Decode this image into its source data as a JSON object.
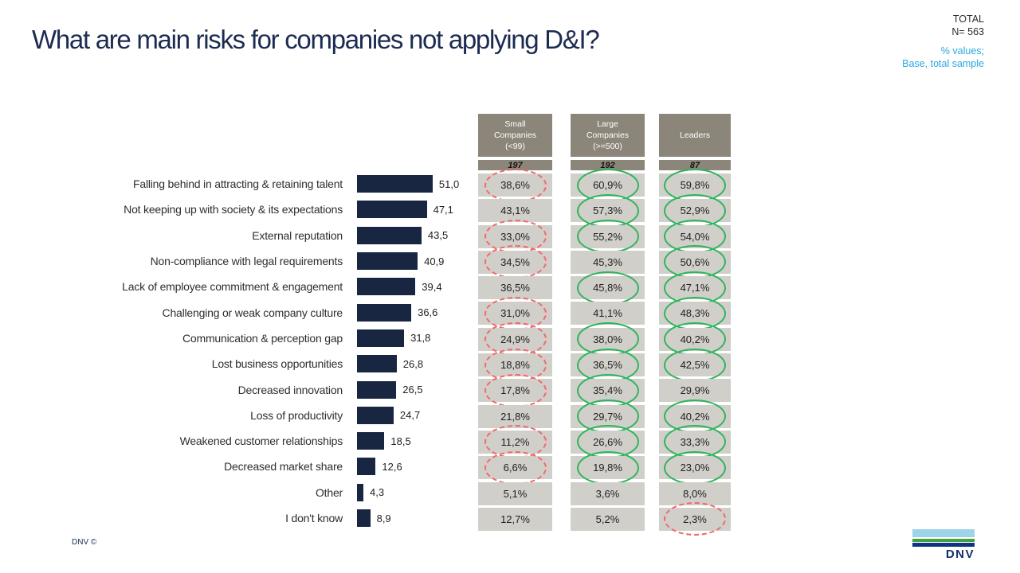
{
  "header": {
    "title": "What are main risks for companies not applying D&I?",
    "total_label": "TOTAL",
    "total_n": "N= 563",
    "note_line1": "% values;",
    "note_line2": "Base, total sample"
  },
  "footer": {
    "copyright": "DNV ©",
    "logo_text": "DNV",
    "logo_colors": {
      "light_blue": "#9ed3ea",
      "green": "#3fa43c",
      "dark_blue": "#0e3380"
    }
  },
  "colors": {
    "bar_navy": "#182642",
    "title_navy": "#1c2b51",
    "cyan_note": "#29a9e1",
    "header_taupe": "#8c8579",
    "cell_gray": "#d1cfca",
    "circle_red": "#f26969",
    "circle_green": "#2fb45c"
  },
  "chart_data": {
    "type": "bar",
    "orientation": "horizontal",
    "title": "What are main risks for companies not applying D&I?",
    "xlim": [
      0,
      55
    ],
    "grid": false,
    "categories": [
      "Falling behind in attracting & retaining talent",
      "Not keeping up with society & its expectations",
      "External reputation",
      "Non-compliance with legal requirements",
      "Lack of employee commitment & engagement",
      "Challenging or weak company culture",
      "Communication & perception gap",
      "Lost business opportunities",
      "Decreased innovation",
      "Loss of productivity",
      "Weakened customer relationships",
      "Decreased market share",
      "Other",
      "I don't know"
    ],
    "bar_labels": [
      "51,0",
      "47,1",
      "43,5",
      "40,9",
      "39,4",
      "36,6",
      "31,8",
      "26,8",
      "26,5",
      "24,7",
      "18,5",
      "12,6",
      "4,3",
      "8,9"
    ],
    "series": [
      {
        "name": "Total",
        "n": 563,
        "values": [
          51.0,
          47.1,
          43.5,
          40.9,
          39.4,
          36.6,
          31.8,
          26.8,
          26.5,
          24.7,
          18.5,
          12.6,
          4.3,
          8.9
        ]
      },
      {
        "name": "Small Companies (<99)",
        "n": 197,
        "values": [
          38.6,
          43.1,
          33.0,
          34.5,
          36.5,
          31.0,
          24.9,
          18.8,
          17.8,
          21.8,
          11.2,
          6.6,
          5.1,
          12.7
        ]
      },
      {
        "name": "Large Companies (>=500)",
        "n": 192,
        "values": [
          60.9,
          57.3,
          55.2,
          45.3,
          45.8,
          41.1,
          38.0,
          36.5,
          35.4,
          29.7,
          26.6,
          19.8,
          3.6,
          5.2
        ]
      },
      {
        "name": "Leaders",
        "n": 87,
        "values": [
          59.8,
          52.9,
          54.0,
          50.6,
          47.1,
          48.3,
          40.2,
          42.5,
          29.9,
          40.2,
          33.3,
          23.0,
          8.0,
          2.3
        ]
      }
    ]
  },
  "columns": [
    {
      "header_lines": [
        "Small",
        "Companies",
        "(<99)"
      ],
      "n": "197",
      "cells": [
        {
          "v": "38,6%",
          "mark": "red-dashed"
        },
        {
          "v": "43,1%",
          "mark": null
        },
        {
          "v": "33,0%",
          "mark": "red-dashed"
        },
        {
          "v": "34,5%",
          "mark": "red-dashed"
        },
        {
          "v": "36,5%",
          "mark": null
        },
        {
          "v": "31,0%",
          "mark": "red-dashed"
        },
        {
          "v": "24,9%",
          "mark": "red-dashed"
        },
        {
          "v": "18,8%",
          "mark": "red-dashed"
        },
        {
          "v": "17,8%",
          "mark": "red-dashed"
        },
        {
          "v": "21,8%",
          "mark": null
        },
        {
          "v": "11,2%",
          "mark": "red-dashed"
        },
        {
          "v": "6,6%",
          "mark": "red-dashed"
        },
        {
          "v": "5,1%",
          "mark": null
        },
        {
          "v": "12,7%",
          "mark": null
        }
      ]
    },
    {
      "header_lines": [
        "Large",
        "Companies",
        "(>=500)"
      ],
      "n": "192",
      "cells": [
        {
          "v": "60,9%",
          "mark": "green-solid"
        },
        {
          "v": "57,3%",
          "mark": "green-solid"
        },
        {
          "v": "55,2%",
          "mark": "green-solid"
        },
        {
          "v": "45,3%",
          "mark": null
        },
        {
          "v": "45,8%",
          "mark": "green-solid"
        },
        {
          "v": "41,1%",
          "mark": null
        },
        {
          "v": "38,0%",
          "mark": "green-solid"
        },
        {
          "v": "36,5%",
          "mark": "green-solid"
        },
        {
          "v": "35,4%",
          "mark": "green-solid"
        },
        {
          "v": "29,7%",
          "mark": "green-solid"
        },
        {
          "v": "26,6%",
          "mark": "green-solid"
        },
        {
          "v": "19,8%",
          "mark": "green-solid"
        },
        {
          "v": "3,6%",
          "mark": null
        },
        {
          "v": "5,2%",
          "mark": null
        }
      ]
    },
    {
      "header_lines": [
        "Leaders"
      ],
      "n": "87",
      "cells": [
        {
          "v": "59,8%",
          "mark": "green-solid"
        },
        {
          "v": "52,9%",
          "mark": "green-solid"
        },
        {
          "v": "54,0%",
          "mark": "green-solid"
        },
        {
          "v": "50,6%",
          "mark": "green-solid"
        },
        {
          "v": "47,1%",
          "mark": "green-solid"
        },
        {
          "v": "48,3%",
          "mark": "green-solid"
        },
        {
          "v": "40,2%",
          "mark": "green-solid"
        },
        {
          "v": "42,5%",
          "mark": "green-solid"
        },
        {
          "v": "29,9%",
          "mark": null
        },
        {
          "v": "40,2%",
          "mark": "green-solid"
        },
        {
          "v": "33,3%",
          "mark": "green-solid"
        },
        {
          "v": "23,0%",
          "mark": "green-solid"
        },
        {
          "v": "8,0%",
          "mark": null
        },
        {
          "v": "2,3%",
          "mark": "red-dashed"
        }
      ]
    }
  ]
}
